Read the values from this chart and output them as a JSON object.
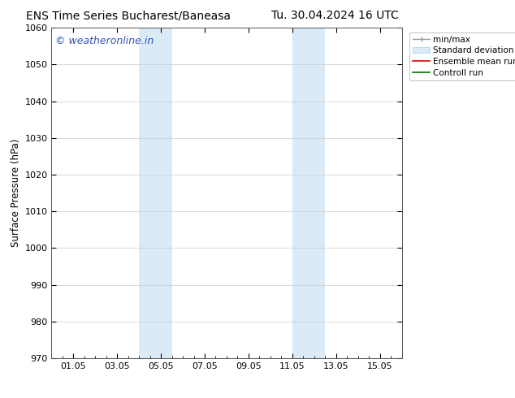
{
  "title_left": "ENS Time Series Bucharest/Baneasa",
  "title_right": "Tu. 30.04.2024 16 UTC",
  "ylabel": "Surface Pressure (hPa)",
  "ylim": [
    970,
    1060
  ],
  "yticks": [
    970,
    980,
    990,
    1000,
    1010,
    1020,
    1030,
    1040,
    1050,
    1060
  ],
  "xtick_labels": [
    "01.05",
    "03.05",
    "05.05",
    "07.05",
    "09.05",
    "11.05",
    "13.05",
    "15.05"
  ],
  "xtick_positions": [
    1,
    3,
    5,
    7,
    9,
    11,
    13,
    15
  ],
  "xlim": [
    0,
    16
  ],
  "shaded_regions": [
    {
      "xmin": 4.0,
      "xmax": 5.5,
      "color": "#daeaf7"
    },
    {
      "xmin": 11.0,
      "xmax": 12.5,
      "color": "#daeaf7"
    }
  ],
  "watermark_text": "© weatheronline.in",
  "watermark_color": "#3355bb",
  "watermark_fontsize": 9,
  "title_fontsize": 10,
  "axis_label_fontsize": 8.5,
  "tick_fontsize": 8,
  "grid_color": "#cccccc",
  "bg_color": "#ffffff",
  "spine_color": "#555555",
  "legend_fontsize": 7.5
}
